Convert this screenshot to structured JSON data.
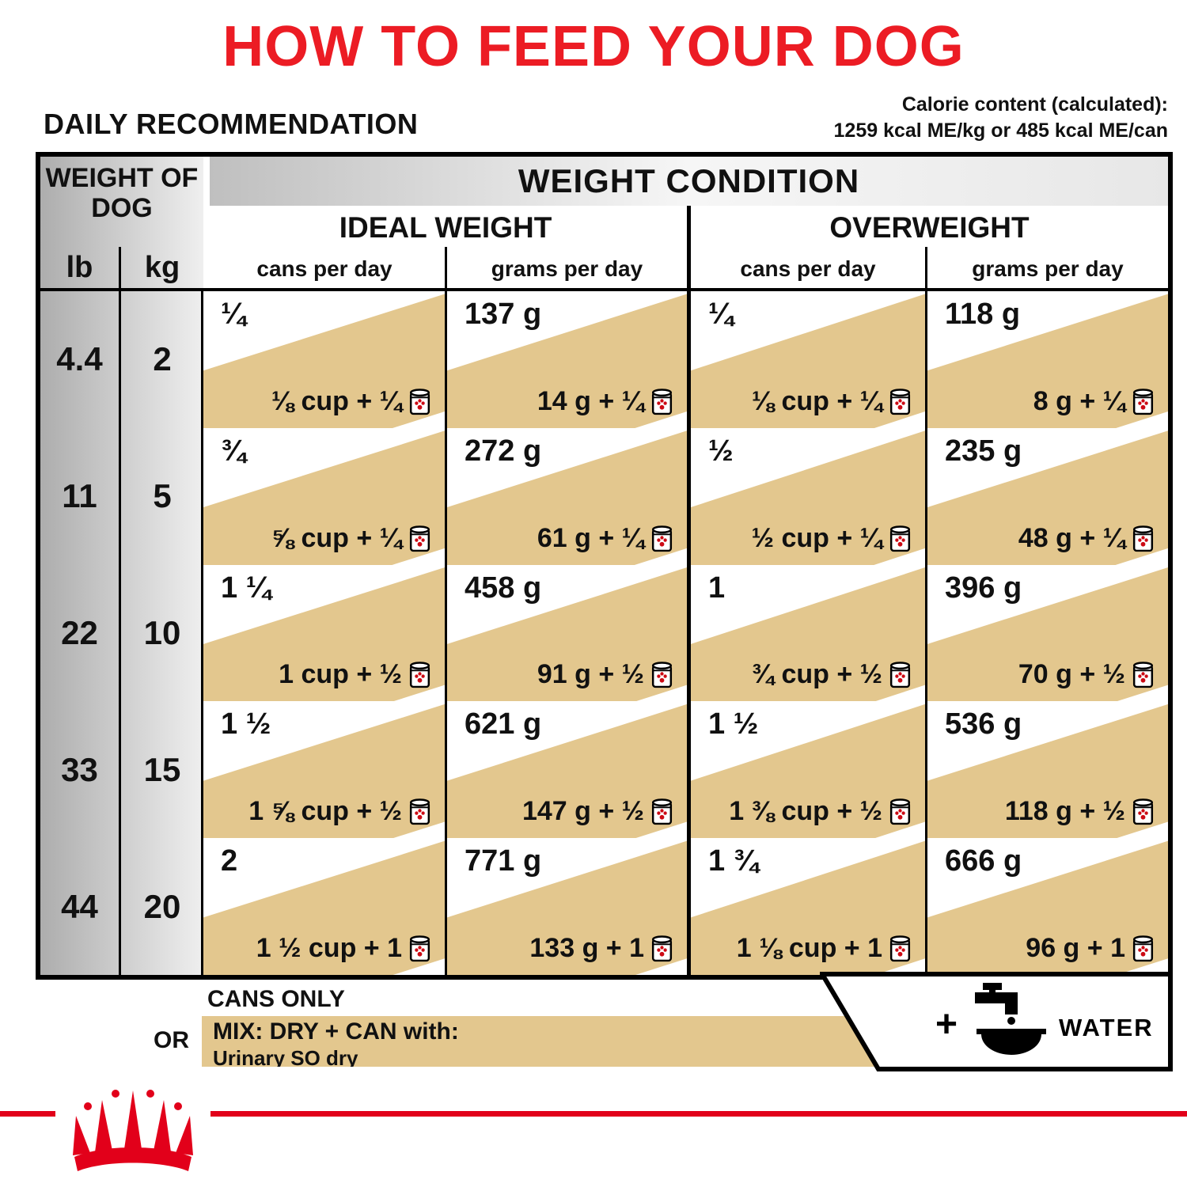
{
  "title": "HOW TO FEED YOUR DOG",
  "daily_recommendation": "DAILY RECOMMENDATION",
  "calories": {
    "line1": "Calorie content (calculated):",
    "line2": "1259 kcal ME/kg or 485 kcal ME/can"
  },
  "table": {
    "weight_of_dog": "WEIGHT OF DOG",
    "weight_condition": "WEIGHT CONDITION",
    "unit_lb": "lb",
    "unit_kg": "kg",
    "group_ideal": "IDEAL WEIGHT",
    "group_overweight": "OVERWEIGHT",
    "col_cans": "cans per day",
    "col_grams": "grams per day",
    "rows": [
      {
        "lb": "4.4",
        "kg": "2",
        "cells": [
          {
            "cans_only": "¼",
            "mix": "⅛ cup + ¼"
          },
          {
            "cans_only": "137 g",
            "mix": "14 g + ¼"
          },
          {
            "cans_only": "¼",
            "mix": "⅛ cup + ¼"
          },
          {
            "cans_only": "118 g",
            "mix": "8 g + ¼"
          }
        ]
      },
      {
        "lb": "11",
        "kg": "5",
        "cells": [
          {
            "cans_only": "¾",
            "mix": "⅝ cup + ¼"
          },
          {
            "cans_only": "272 g",
            "mix": "61 g + ¼"
          },
          {
            "cans_only": "½",
            "mix": "½ cup + ¼"
          },
          {
            "cans_only": "235 g",
            "mix": "48 g + ¼"
          }
        ]
      },
      {
        "lb": "22",
        "kg": "10",
        "cells": [
          {
            "cans_only": "1 ¼",
            "mix": "1 cup + ½"
          },
          {
            "cans_only": "458 g",
            "mix": "91 g + ½"
          },
          {
            "cans_only": "1",
            "mix": "¾ cup + ½"
          },
          {
            "cans_only": "396 g",
            "mix": "70 g + ½"
          }
        ]
      },
      {
        "lb": "33",
        "kg": "15",
        "cells": [
          {
            "cans_only": "1 ½",
            "mix": "1 ⅝ cup + ½"
          },
          {
            "cans_only": "621 g",
            "mix": "147 g + ½"
          },
          {
            "cans_only": "1 ½",
            "mix": "1 ⅜ cup + ½"
          },
          {
            "cans_only": "536 g",
            "mix": "118 g + ½"
          }
        ]
      },
      {
        "lb": "44",
        "kg": "20",
        "cells": [
          {
            "cans_only": "2",
            "mix": "1 ½ cup + 1"
          },
          {
            "cans_only": "771 g",
            "mix": "133 g + 1"
          },
          {
            "cans_only": "1 ¾",
            "mix": "1 ⅛ cup + 1"
          },
          {
            "cans_only": "666 g",
            "mix": "96 g + 1"
          }
        ]
      }
    ]
  },
  "legend": {
    "cans_only": "CANS ONLY",
    "or": "OR",
    "mix": "MIX: DRY + CAN with:",
    "mix_product": "Urinary SO dry",
    "water": "WATER",
    "water_plus": "+"
  },
  "icons": {
    "can": "canned-food-icon",
    "water": "faucet-and-bowl-icon",
    "logo": "royal-canin-crown-logo"
  },
  "colors": {
    "title_red": "#ec1c24",
    "brand_red": "#e2001a",
    "tan": "#e3c78e",
    "gray_dark": "#adadad",
    "gray_light": "#efefef"
  }
}
